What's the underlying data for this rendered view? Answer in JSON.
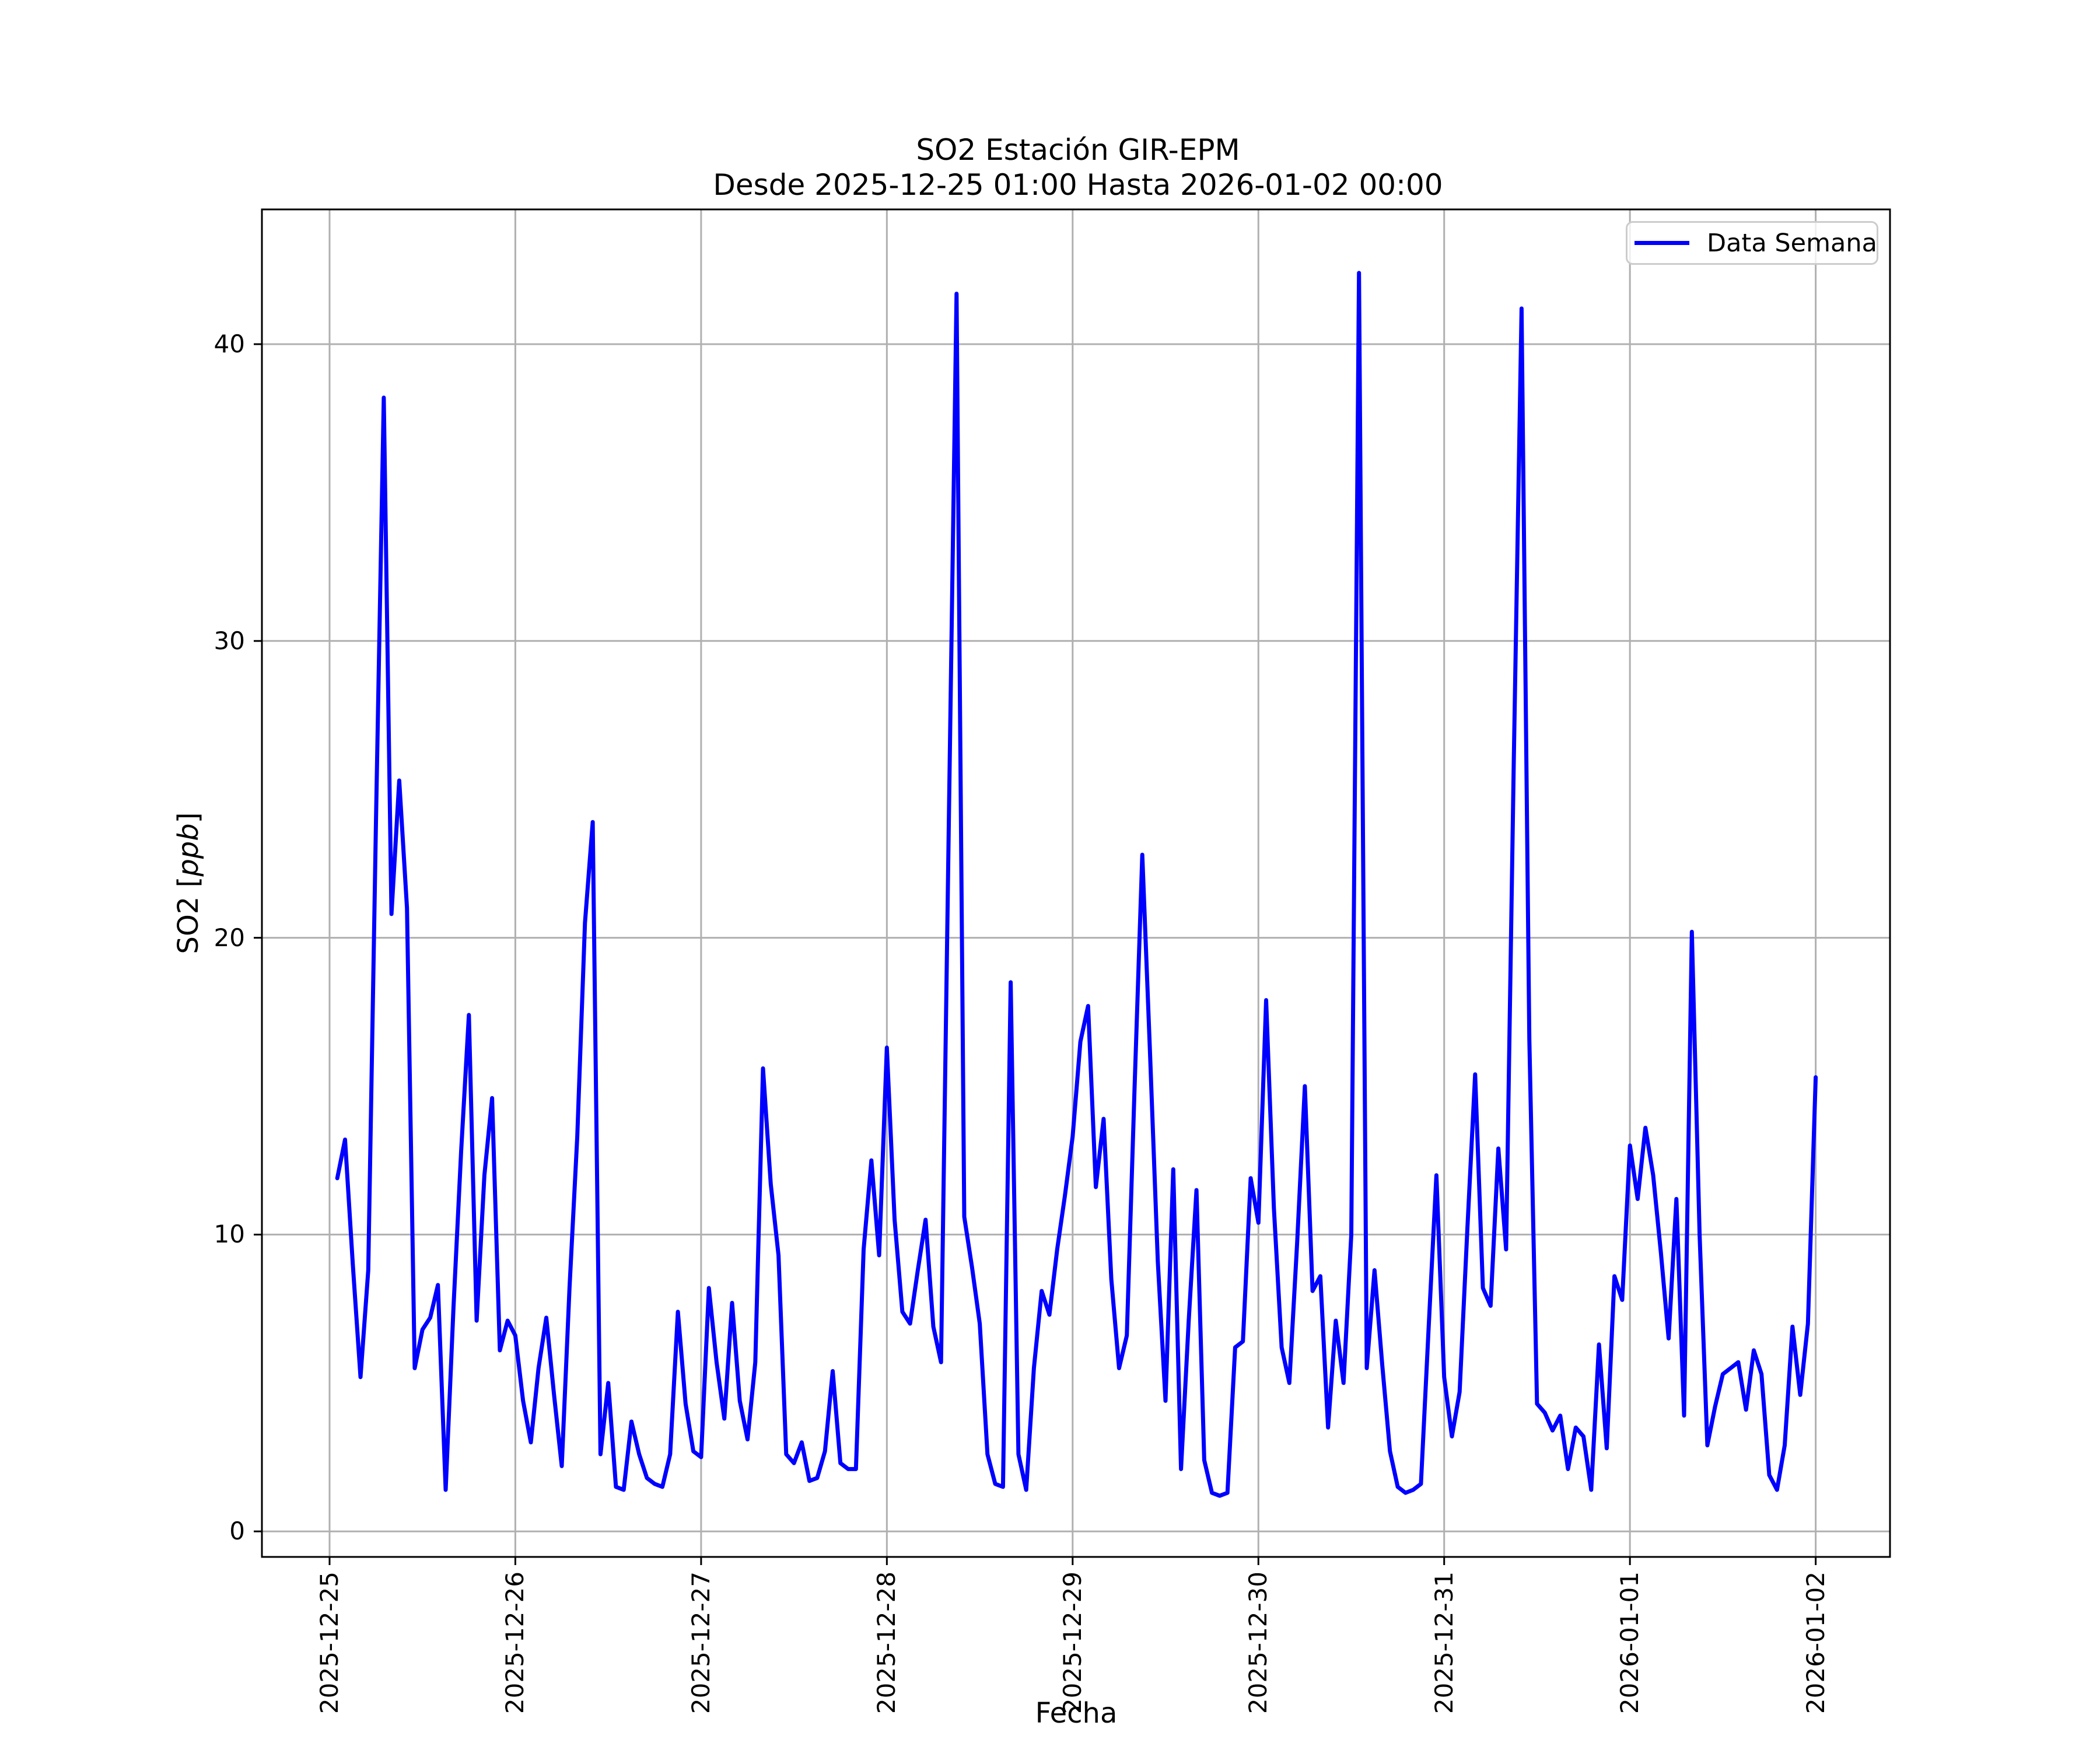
{
  "figure": {
    "title_line1": "SO2 Estación GIR-EPM",
    "title_line2": "Desde 2025-12-25 01:00 Hasta 2026-01-02 00:00",
    "xlabel": "Fecha",
    "ylabel_prefix": "SO2 [",
    "ylabel_italic": "ppb",
    "ylabel_suffix": "]"
  },
  "legend": {
    "label": "Data Semana",
    "position": "upper right"
  },
  "colors": {
    "line": "#0000ff",
    "grid": "#b0b0b0",
    "axis": "#000000",
    "legend_border": "#cccccc",
    "background": "#ffffff"
  },
  "chart_data": {
    "type": "line",
    "title": "SO2 Estación GIR-EPM",
    "subtitle": "Desde 2025-12-25 01:00 Hasta 2026-01-02 00:00",
    "xlabel": "Fecha",
    "ylabel": "SO2 [ppb]",
    "grid": true,
    "legend_position": "upper right",
    "y_ticks": [
      0,
      10,
      20,
      30,
      40
    ],
    "ylim": [
      -0.86,
      44.54
    ],
    "xlim_hours": [
      -8.74,
      201.6
    ],
    "x_tick_hours": [
      0,
      24,
      48,
      72,
      96,
      120,
      144,
      168,
      192
    ],
    "x_tick_labels": [
      "2025-12-25",
      "2025-12-26",
      "2025-12-27",
      "2025-12-28",
      "2025-12-29",
      "2025-12-30",
      "2025-12-31",
      "2026-01-01",
      "2026-01-02"
    ],
    "start_hour_offset": 1,
    "sampling": "hourly",
    "series": [
      {
        "name": "Data Semana",
        "color": "#0000ff",
        "values": [
          11.9,
          13.2,
          9.0,
          5.2,
          8.8,
          24.0,
          38.2,
          20.8,
          25.3,
          21.0,
          5.5,
          6.8,
          7.2,
          8.3,
          1.4,
          7.5,
          12.8,
          17.4,
          7.1,
          12.0,
          14.6,
          6.1,
          7.1,
          6.6,
          4.4,
          3.0,
          5.5,
          7.2,
          4.6,
          2.2,
          8.2,
          13.3,
          20.5,
          23.9,
          2.6,
          5.0,
          1.5,
          1.4,
          3.7,
          2.6,
          1.8,
          1.6,
          1.5,
          2.6,
          7.4,
          4.3,
          2.7,
          2.5,
          8.2,
          5.7,
          3.8,
          7.7,
          4.4,
          3.1,
          5.7,
          15.6,
          11.7,
          9.3,
          2.6,
          2.3,
          3.0,
          1.7,
          1.8,
          2.7,
          5.4,
          2.3,
          2.1,
          2.1,
          9.5,
          12.5,
          9.3,
          16.3,
          10.5,
          7.4,
          7.0,
          8.8,
          10.5,
          6.9,
          5.7,
          23.8,
          41.7,
          10.6,
          8.9,
          7.0,
          2.6,
          1.6,
          1.5,
          18.5,
          2.6,
          1.4,
          5.5,
          8.1,
          7.3,
          9.5,
          11.3,
          13.3,
          16.5,
          17.7,
          11.6,
          13.9,
          8.5,
          5.5,
          6.6,
          14.9,
          22.8,
          16.1,
          9.1,
          4.4,
          12.2,
          2.1,
          7.1,
          11.5,
          2.4,
          1.3,
          1.2,
          1.3,
          6.2,
          6.4,
          11.9,
          10.4,
          17.9,
          10.9,
          6.2,
          5.0,
          9.7,
          15.0,
          8.1,
          8.6,
          3.5,
          7.1,
          5.0,
          10.0,
          42.4,
          5.5,
          8.8,
          5.6,
          2.7,
          1.5,
          1.3,
          1.4,
          1.6,
          6.9,
          12.0,
          5.2,
          3.2,
          4.7,
          10.2,
          15.4,
          8.2,
          7.6,
          12.9,
          9.5,
          26.0,
          41.2,
          16.6,
          4.3,
          4.0,
          3.4,
          3.9,
          2.1,
          3.5,
          3.2,
          1.4,
          6.3,
          2.8,
          8.6,
          7.8,
          13.0,
          11.2,
          13.6,
          12.0,
          9.4,
          6.5,
          11.2,
          3.9,
          20.2,
          10.0,
          2.9,
          4.2,
          5.3,
          5.5,
          5.7,
          4.1,
          6.1,
          5.3,
          1.9,
          1.4,
          2.9,
          6.9,
          4.6,
          7.0,
          15.3
        ]
      }
    ]
  }
}
